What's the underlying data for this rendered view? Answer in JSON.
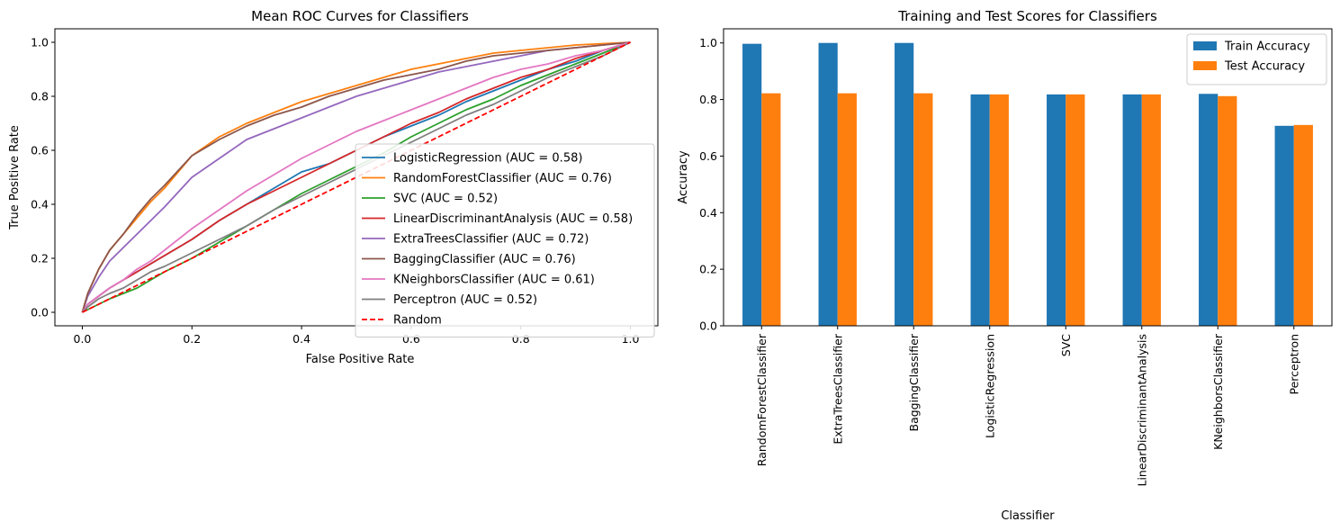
{
  "chart_data": [
    {
      "type": "line",
      "title": "Mean ROC Curves for Classifiers",
      "xlabel": "False Positive Rate",
      "ylabel": "True Positive Rate",
      "xlim": [
        -0.05,
        1.05
      ],
      "ylim": [
        -0.05,
        1.05
      ],
      "xticks": [
        "0.0",
        "0.2",
        "0.4",
        "0.6",
        "0.8",
        "1.0"
      ],
      "yticks": [
        "0.0",
        "0.2",
        "0.4",
        "0.6",
        "0.8",
        "1.0"
      ],
      "grid": false,
      "legend_position": "lower-right",
      "x": [
        0,
        0.01,
        0.03,
        0.05,
        0.075,
        0.1,
        0.125,
        0.15,
        0.2,
        0.25,
        0.3,
        0.35,
        0.4,
        0.45,
        0.5,
        0.55,
        0.6,
        0.65,
        0.7,
        0.75,
        0.8,
        0.85,
        0.9,
        0.95,
        1.0
      ],
      "series": [
        {
          "name": "LogisticRegression (AUC = 0.58)",
          "color": "#1f77b4",
          "dash": "solid",
          "values": [
            0,
            0.03,
            0.06,
            0.09,
            0.12,
            0.15,
            0.18,
            0.21,
            0.27,
            0.34,
            0.4,
            0.46,
            0.52,
            0.55,
            0.6,
            0.65,
            0.69,
            0.73,
            0.78,
            0.82,
            0.86,
            0.9,
            0.93,
            0.97,
            1.0
          ]
        },
        {
          "name": "RandomForestClassifier (AUC = 0.76)",
          "color": "#ff7f0e",
          "dash": "solid",
          "values": [
            0,
            0.07,
            0.16,
            0.23,
            0.29,
            0.35,
            0.41,
            0.46,
            0.58,
            0.65,
            0.7,
            0.74,
            0.78,
            0.81,
            0.84,
            0.87,
            0.9,
            0.92,
            0.94,
            0.96,
            0.97,
            0.98,
            0.99,
            0.995,
            1.0
          ]
        },
        {
          "name": "SVC (AUC = 0.52)",
          "color": "#2ca02c",
          "dash": "solid",
          "values": [
            0,
            0.01,
            0.03,
            0.05,
            0.07,
            0.09,
            0.12,
            0.15,
            0.2,
            0.26,
            0.32,
            0.38,
            0.44,
            0.49,
            0.54,
            0.59,
            0.65,
            0.7,
            0.75,
            0.79,
            0.84,
            0.88,
            0.92,
            0.96,
            1.0
          ]
        },
        {
          "name": "LinearDiscriminantAnalysis (AUC = 0.58)",
          "color": "#d62728",
          "dash": "solid",
          "values": [
            0,
            0.03,
            0.06,
            0.09,
            0.12,
            0.15,
            0.18,
            0.21,
            0.27,
            0.34,
            0.4,
            0.45,
            0.5,
            0.55,
            0.6,
            0.65,
            0.7,
            0.74,
            0.79,
            0.83,
            0.87,
            0.9,
            0.94,
            0.97,
            1.0
          ]
        },
        {
          "name": "ExtraTreesClassifier (AUC = 0.72)",
          "color": "#9467bd",
          "dash": "solid",
          "values": [
            0,
            0.06,
            0.13,
            0.19,
            0.24,
            0.29,
            0.34,
            0.39,
            0.5,
            0.57,
            0.64,
            0.68,
            0.72,
            0.76,
            0.8,
            0.83,
            0.86,
            0.89,
            0.91,
            0.93,
            0.95,
            0.97,
            0.98,
            0.99,
            1.0
          ]
        },
        {
          "name": "BaggingClassifier (AUC = 0.76)",
          "color": "#8c564b",
          "dash": "solid",
          "values": [
            0,
            0.07,
            0.16,
            0.23,
            0.29,
            0.36,
            0.42,
            0.47,
            0.58,
            0.64,
            0.69,
            0.73,
            0.76,
            0.8,
            0.83,
            0.86,
            0.88,
            0.9,
            0.93,
            0.95,
            0.96,
            0.97,
            0.98,
            0.99,
            1.0
          ]
        },
        {
          "name": "KNeighborsClassifier (AUC = 0.61)",
          "color": "#e377c2",
          "dash": "solid",
          "values": [
            0,
            0.03,
            0.06,
            0.09,
            0.12,
            0.16,
            0.19,
            0.23,
            0.31,
            0.38,
            0.45,
            0.51,
            0.57,
            0.62,
            0.67,
            0.71,
            0.75,
            0.79,
            0.83,
            0.87,
            0.9,
            0.92,
            0.95,
            0.97,
            1.0
          ]
        },
        {
          "name": "Perceptron (AUC = 0.52)",
          "color": "#7f7f7f",
          "dash": "solid",
          "values": [
            0,
            0.02,
            0.05,
            0.07,
            0.09,
            0.12,
            0.15,
            0.17,
            0.22,
            0.27,
            0.32,
            0.38,
            0.43,
            0.48,
            0.53,
            0.58,
            0.63,
            0.68,
            0.73,
            0.77,
            0.82,
            0.87,
            0.91,
            0.95,
            1.0
          ]
        },
        {
          "name": "Random",
          "color": "#ff0000",
          "dash": "dashed",
          "values": [
            0,
            0.01,
            0.03,
            0.05,
            0.075,
            0.1,
            0.125,
            0.15,
            0.2,
            0.25,
            0.3,
            0.35,
            0.4,
            0.45,
            0.5,
            0.55,
            0.6,
            0.65,
            0.7,
            0.75,
            0.8,
            0.85,
            0.9,
            0.95,
            1.0
          ]
        }
      ]
    },
    {
      "type": "bar",
      "title": "Training and Test Scores for Classifiers",
      "xlabel": "Classifier",
      "ylabel": "Accuracy",
      "ylim": [
        0,
        1.05
      ],
      "yticks": [
        "0.0",
        "0.2",
        "0.4",
        "0.6",
        "0.8",
        "1.0"
      ],
      "grid": false,
      "legend_position": "top-right",
      "categories": [
        "RandomForestClassifier",
        "ExtraTreesClassifier",
        "BaggingClassifier",
        "LogisticRegression",
        "SVC",
        "LinearDiscriminantAnalysis",
        "KNeighborsClassifier",
        "Perceptron"
      ],
      "series": [
        {
          "name": "Train Accuracy",
          "color": "#1f77b4",
          "values": [
            0.997,
            1.0,
            1.0,
            0.818,
            0.818,
            0.818,
            0.82,
            0.707
          ]
        },
        {
          "name": "Test Accuracy",
          "color": "#ff7f0e",
          "values": [
            0.822,
            0.822,
            0.822,
            0.818,
            0.818,
            0.818,
            0.812,
            0.71
          ]
        }
      ]
    }
  ]
}
